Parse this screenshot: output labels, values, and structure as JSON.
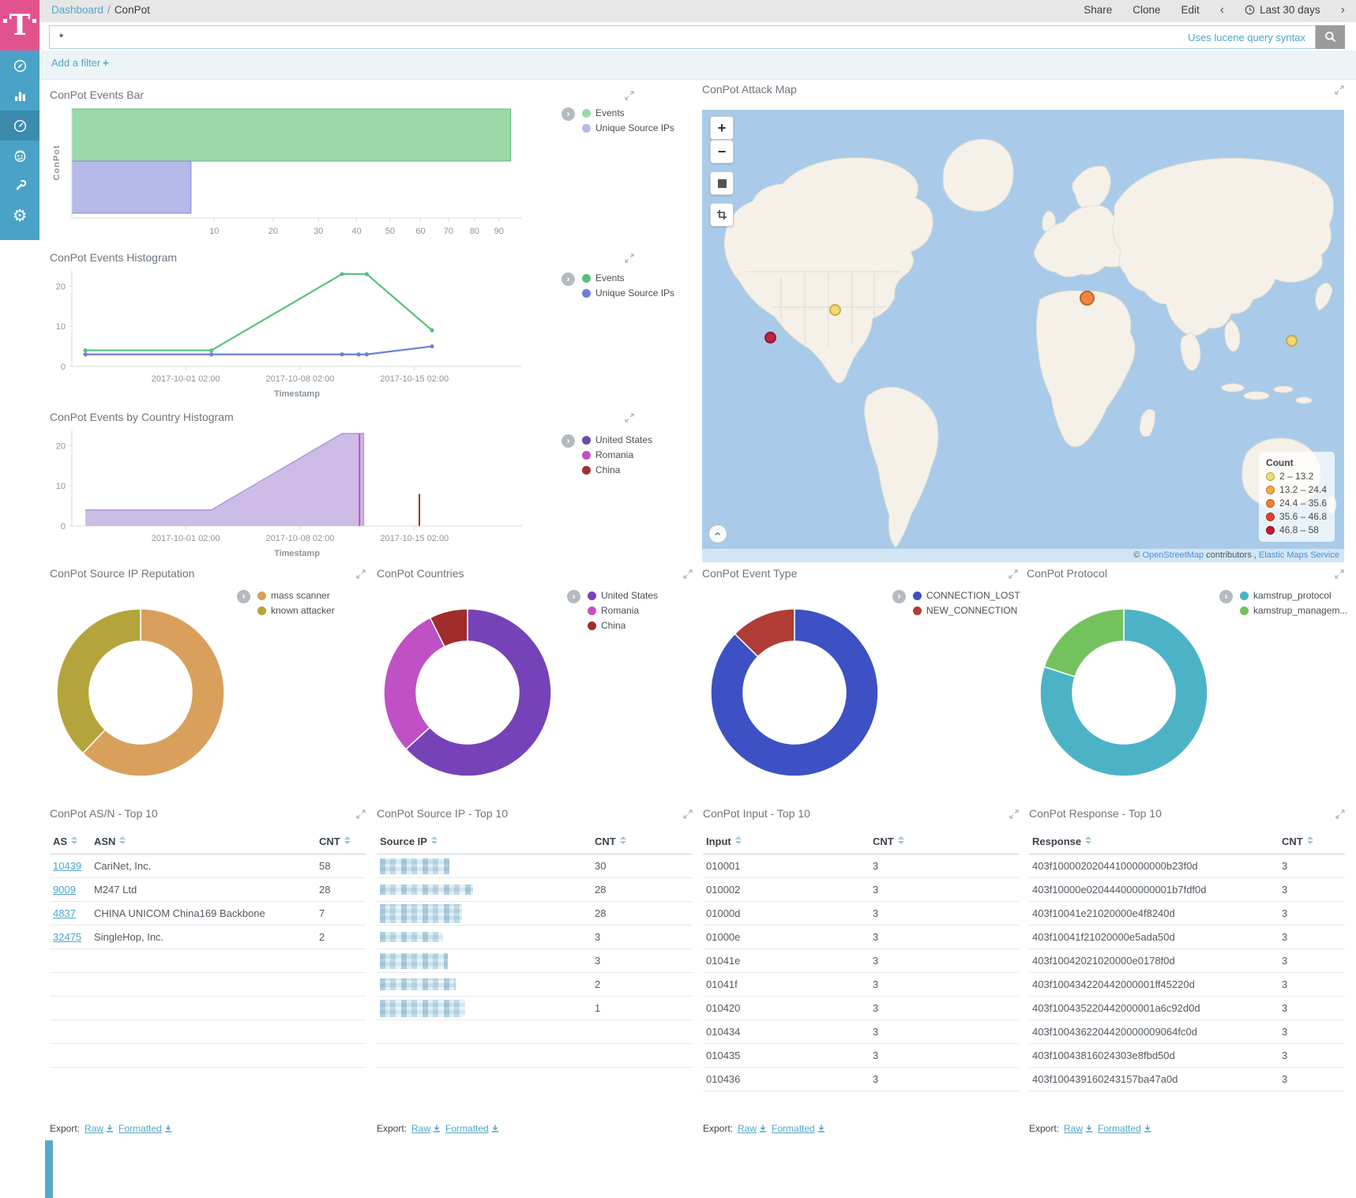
{
  "header": {
    "breadcrumb": {
      "root": "Dashboard",
      "separator": "/",
      "current": "ConPot"
    },
    "actions": [
      {
        "label": "Share"
      },
      {
        "label": "Clone"
      },
      {
        "label": "Edit"
      }
    ],
    "time_picker": {
      "prev": "‹",
      "label": "Last 30 days",
      "next": "›"
    }
  },
  "search": {
    "query": "*",
    "hint": "Uses lucene query syntax"
  },
  "filter_bar": {
    "add_filter": "Add a filter",
    "plus": "+"
  },
  "sidebar": {
    "items": [
      {
        "name": "discover",
        "icon": "compass-icon",
        "active": false
      },
      {
        "name": "visualize",
        "icon": "bar-chart-icon",
        "active": false
      },
      {
        "name": "dashboard",
        "icon": "gauge-icon",
        "active": true
      },
      {
        "name": "timelion",
        "icon": "timelion-face-icon",
        "active": false
      },
      {
        "name": "dev-tools",
        "icon": "wrench-icon",
        "active": false
      },
      {
        "name": "management",
        "icon": "gear-icon",
        "active": false
      }
    ]
  },
  "panels": {
    "events_bar": {
      "title": "ConPot Events Bar"
    },
    "events_histogram": {
      "title": "ConPot Events Histogram"
    },
    "country_histogram": {
      "title": "ConPot Events by Country Histogram"
    },
    "attack_map": {
      "title": "ConPot Attack Map"
    },
    "rep_donut": {
      "title": "ConPot Source IP Reputation"
    },
    "countries_donut": {
      "title": "ConPot Countries"
    },
    "event_type_donut": {
      "title": "ConPot Event Type"
    },
    "protocol_donut": {
      "title": "ConPot Protocol"
    },
    "asn_table": {
      "title": "ConPot AS/N - Top 10"
    },
    "source_ip_table": {
      "title": "ConPot Source IP - Top 10"
    },
    "input_table": {
      "title": "ConPot Input - Top 10"
    },
    "response_table": {
      "title": "ConPot Response - Top 10"
    }
  },
  "chart_data": {
    "events_bar": {
      "type": "bar",
      "orientation": "horizontal",
      "x_scale": "square_root",
      "ylabel": "ConPot",
      "xlim": [
        0,
        100
      ],
      "xticks": [
        10,
        20,
        30,
        40,
        50,
        60,
        70,
        80,
        90
      ],
      "series": [
        {
          "name": "Events",
          "value": 95,
          "fill": "#9cd9a9",
          "stroke": "#57c17b"
        },
        {
          "name": "Unique Source IPs",
          "value": 7,
          "fill": "#b5bae8",
          "stroke": "#7d88dd"
        }
      ],
      "legend_position": "right"
    },
    "events_histogram": {
      "type": "line",
      "xlabel": "Timestamp",
      "ylim": [
        0,
        24
      ],
      "yticks": [
        0,
        10,
        20
      ],
      "xticks": [
        {
          "label": "2017-10-01 02:00",
          "pos": 0.253
        },
        {
          "label": "2017-10-08 02:00",
          "pos": 0.507
        },
        {
          "label": "2017-10-15 02:00",
          "pos": 0.761
        }
      ],
      "series": [
        {
          "name": "Events",
          "color": "#57c17b",
          "points": [
            [
              0.03,
              4
            ],
            [
              0.31,
              4
            ],
            [
              0.6,
              23
            ],
            [
              0.655,
              23
            ],
            [
              0.8,
              9
            ]
          ]
        },
        {
          "name": "Unique Source IPs",
          "color": "#6d80d8",
          "points": [
            [
              0.03,
              3
            ],
            [
              0.31,
              3
            ],
            [
              0.6,
              3
            ],
            [
              0.637,
              3
            ],
            [
              0.655,
              3
            ],
            [
              0.8,
              5
            ]
          ]
        }
      ],
      "legend_position": "right"
    },
    "country_histogram": {
      "type": "area",
      "xlabel": "Timestamp",
      "ylim": [
        0,
        24
      ],
      "yticks": [
        0,
        10,
        20
      ],
      "xticks": [
        {
          "label": "2017-10-01 02:00",
          "pos": 0.253
        },
        {
          "label": "2017-10-08 02:00",
          "pos": 0.507
        },
        {
          "label": "2017-10-15 02:00",
          "pos": 0.761
        }
      ],
      "series": [
        {
          "name": "United States",
          "color": "#b49bd9",
          "fill": "#cdbce6",
          "legend_color": "#6a4ba8",
          "points": [
            [
              0.03,
              4
            ],
            [
              0.31,
              4
            ],
            [
              0.6,
              23
            ],
            [
              0.648,
              23
            ],
            [
              0.648,
              0
            ]
          ]
        },
        {
          "name": "Romania",
          "color": "#c24ec2",
          "spike": {
            "x": 0.639,
            "h": 23
          }
        },
        {
          "name": "China",
          "color": "#a12f2f",
          "spike": {
            "x": 0.772,
            "h": 8
          }
        }
      ],
      "legend_position": "right"
    },
    "source_ip_reputation": {
      "type": "pie",
      "donut": true,
      "slices": [
        {
          "label": "mass scanner",
          "value": 59,
          "color": "#d9a05c"
        },
        {
          "label": "known attacker",
          "value": 36,
          "color": "#b5a43c"
        }
      ]
    },
    "countries": {
      "type": "pie",
      "donut": true,
      "slices": [
        {
          "label": "United States",
          "value": 60,
          "color": "#7642b8"
        },
        {
          "label": "Romania",
          "value": 28,
          "color": "#c050c5"
        },
        {
          "label": "China",
          "value": 7,
          "color": "#a02c2c"
        }
      ]
    },
    "event_type": {
      "type": "pie",
      "donut": true,
      "slices": [
        {
          "label": "CONNECTION_LOST",
          "value": 83,
          "color": "#3d51c4"
        },
        {
          "label": "NEW_CONNECTION",
          "value": 12,
          "color": "#b03c35"
        }
      ]
    },
    "protocol": {
      "type": "pie",
      "donut": true,
      "slices": [
        {
          "label": "kamstrup_protocol",
          "value": 76,
          "color": "#4cb3c6"
        },
        {
          "label": "kamstrup_managem...",
          "value": 19,
          "color": "#74c25e"
        }
      ]
    }
  },
  "map": {
    "legend": {
      "title": "Count",
      "entries": [
        {
          "label": "2 – 13.2",
          "color": "#f0db6e"
        },
        {
          "label": "13.2 – 24.4",
          "color": "#f5a942"
        },
        {
          "label": "24.4 – 35.6",
          "color": "#ef8038"
        },
        {
          "label": "35.6 – 46.8",
          "color": "#e5402f"
        },
        {
          "label": "46.8 – 58",
          "color": "#c31a35"
        }
      ]
    },
    "markers": [
      {
        "x": 0.207,
        "y": 0.443,
        "color": "#f0db6e",
        "border": "#c9a83c",
        "size": 15
      },
      {
        "x": 0.106,
        "y": 0.503,
        "color": "#c31a35",
        "border": "#8c0f26",
        "size": 15
      },
      {
        "x": 0.6,
        "y": 0.417,
        "color": "#ef8038",
        "border": "#c05f1f",
        "size": 19
      },
      {
        "x": 0.918,
        "y": 0.511,
        "color": "#f0db6e",
        "border": "#c9a83c",
        "size": 15
      }
    ],
    "controls": {
      "zoom_in": "+",
      "zoom_out": "−",
      "fit": "fit-extent",
      "crop": "crop-tool"
    },
    "attribution": {
      "prefix": "©",
      "osm_link": "OpenStreetMap",
      "contributors": "contributors",
      "comma": ",",
      "ems_link": "Elastic Maps Service"
    }
  },
  "tables": {
    "asn": {
      "columns": [
        "AS",
        "ASN",
        "CNT"
      ],
      "rows": [
        [
          "10439",
          "CariNet, Inc.",
          "58"
        ],
        [
          "9009",
          "M247 Ltd",
          "28"
        ],
        [
          "4837",
          "CHINA UNICOM China169 Backbone",
          "7"
        ],
        [
          "32475",
          "SingleHop, Inc.",
          "2"
        ]
      ]
    },
    "source_ip": {
      "columns": [
        "Source IP",
        "CNT"
      ],
      "rows": [
        [
          "",
          "30"
        ],
        [
          "",
          "28"
        ],
        [
          "",
          "28"
        ],
        [
          "",
          "3"
        ],
        [
          "",
          "3"
        ],
        [
          "",
          "2"
        ],
        [
          "",
          "1"
        ]
      ],
      "note": "source IP values are redacted/pixelated in the screenshot"
    },
    "input": {
      "columns": [
        "Input",
        "CNT"
      ],
      "rows": [
        [
          "010001",
          "3"
        ],
        [
          "010002",
          "3"
        ],
        [
          "01000d",
          "3"
        ],
        [
          "01000e",
          "3"
        ],
        [
          "01041e",
          "3"
        ],
        [
          "01041f",
          "3"
        ],
        [
          "010420",
          "3"
        ],
        [
          "010434",
          "3"
        ],
        [
          "010435",
          "3"
        ],
        [
          "010436",
          "3"
        ]
      ]
    },
    "response": {
      "columns": [
        "Response",
        "CNT"
      ],
      "rows": [
        [
          "403f10000202044100000000b23f0d",
          "3"
        ],
        [
          "403f10000e020444000000001b7fdf0d",
          "3"
        ],
        [
          "403f10041e21020000e4f8240d",
          "3"
        ],
        [
          "403f10041f21020000e5ada50d",
          "3"
        ],
        [
          "403f10042021020000e0178f0d",
          "3"
        ],
        [
          "403f100434220442000001ff45220d",
          "3"
        ],
        [
          "403f100435220442000001a6c92d0d",
          "3"
        ],
        [
          "403f1004362204420000009064fc0d",
          "3"
        ],
        [
          "403f10043816024303e8fbd50d",
          "3"
        ],
        [
          "403f100439160243157ba47a0d",
          "3"
        ]
      ]
    }
  },
  "export": {
    "label": "Export:",
    "raw": "Raw",
    "formatted": "Formatted"
  }
}
